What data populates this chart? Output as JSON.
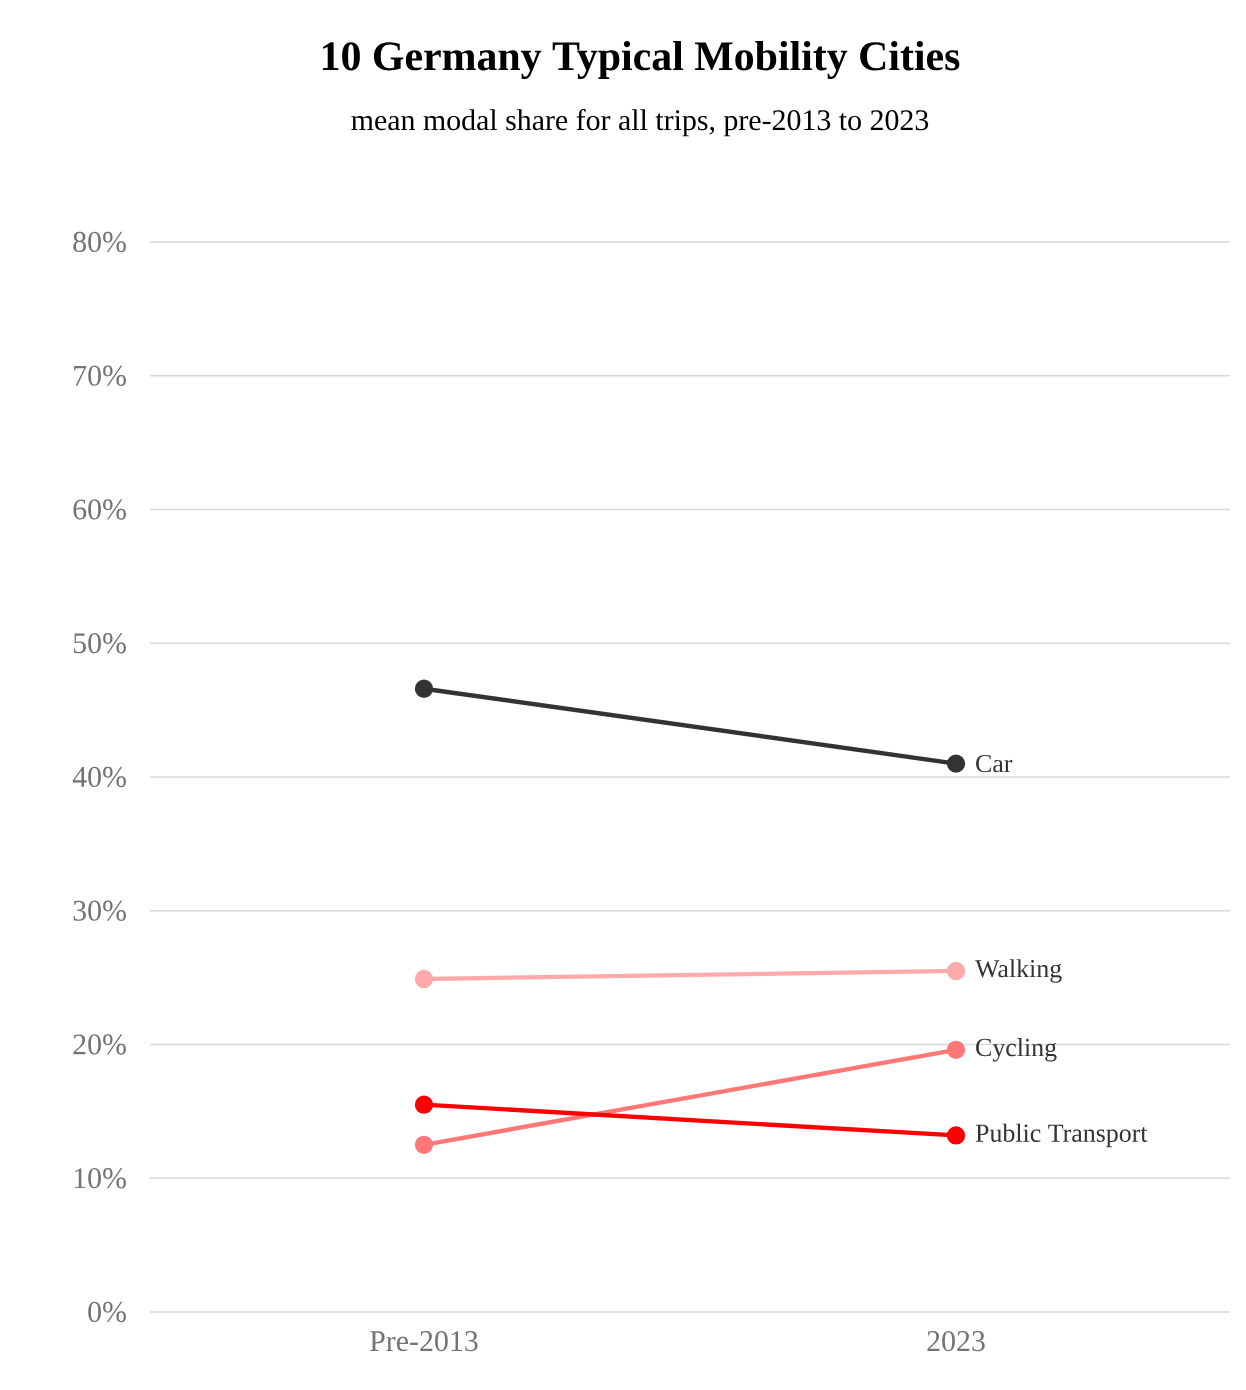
{
  "chart_data": {
    "type": "line",
    "title": "10 Germany Typical Mobility Cities",
    "subtitle": "mean modal share for all trips, pre-2013 to 2023",
    "categories": [
      "Pre-2013",
      "2023"
    ],
    "series": [
      {
        "name": "Car",
        "color": "#333333",
        "values": [
          46.6,
          41.0
        ]
      },
      {
        "name": "Walking",
        "color": "#ffaaaa",
        "values": [
          24.9,
          25.5
        ]
      },
      {
        "name": "Cycling",
        "color": "#ff7777",
        "values": [
          12.5,
          19.6
        ]
      },
      {
        "name": "Public Transport",
        "color": "#ff0000",
        "values": [
          15.5,
          13.2
        ]
      }
    ],
    "ylim": [
      0,
      80
    ],
    "yticks": [
      {
        "value": 0,
        "label": "0%"
      },
      {
        "value": 10,
        "label": "10%"
      },
      {
        "value": 20,
        "label": "20%"
      },
      {
        "value": 30,
        "label": "30%"
      },
      {
        "value": 40,
        "label": "40%"
      },
      {
        "value": 50,
        "label": "50%"
      },
      {
        "value": 60,
        "label": "60%"
      },
      {
        "value": 70,
        "label": "70%"
      },
      {
        "value": 80,
        "label": "80%"
      }
    ],
    "grid": "y",
    "marker": "circle",
    "line_style": "solid"
  }
}
